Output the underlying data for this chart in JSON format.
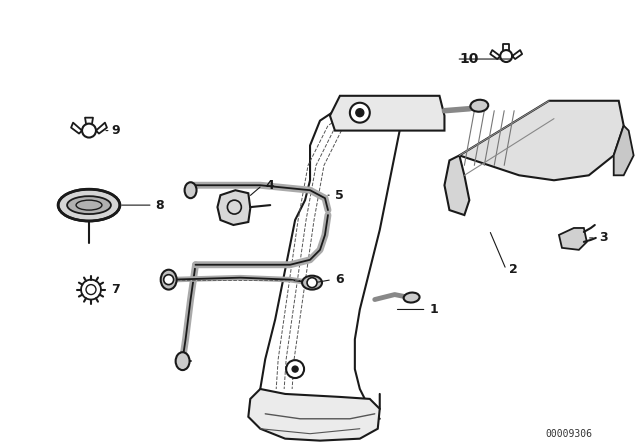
{
  "bg_color": "#ffffff",
  "line_color": "#1a1a1a",
  "fig_width": 6.4,
  "fig_height": 4.48,
  "dpi": 100,
  "watermark": "00009306"
}
